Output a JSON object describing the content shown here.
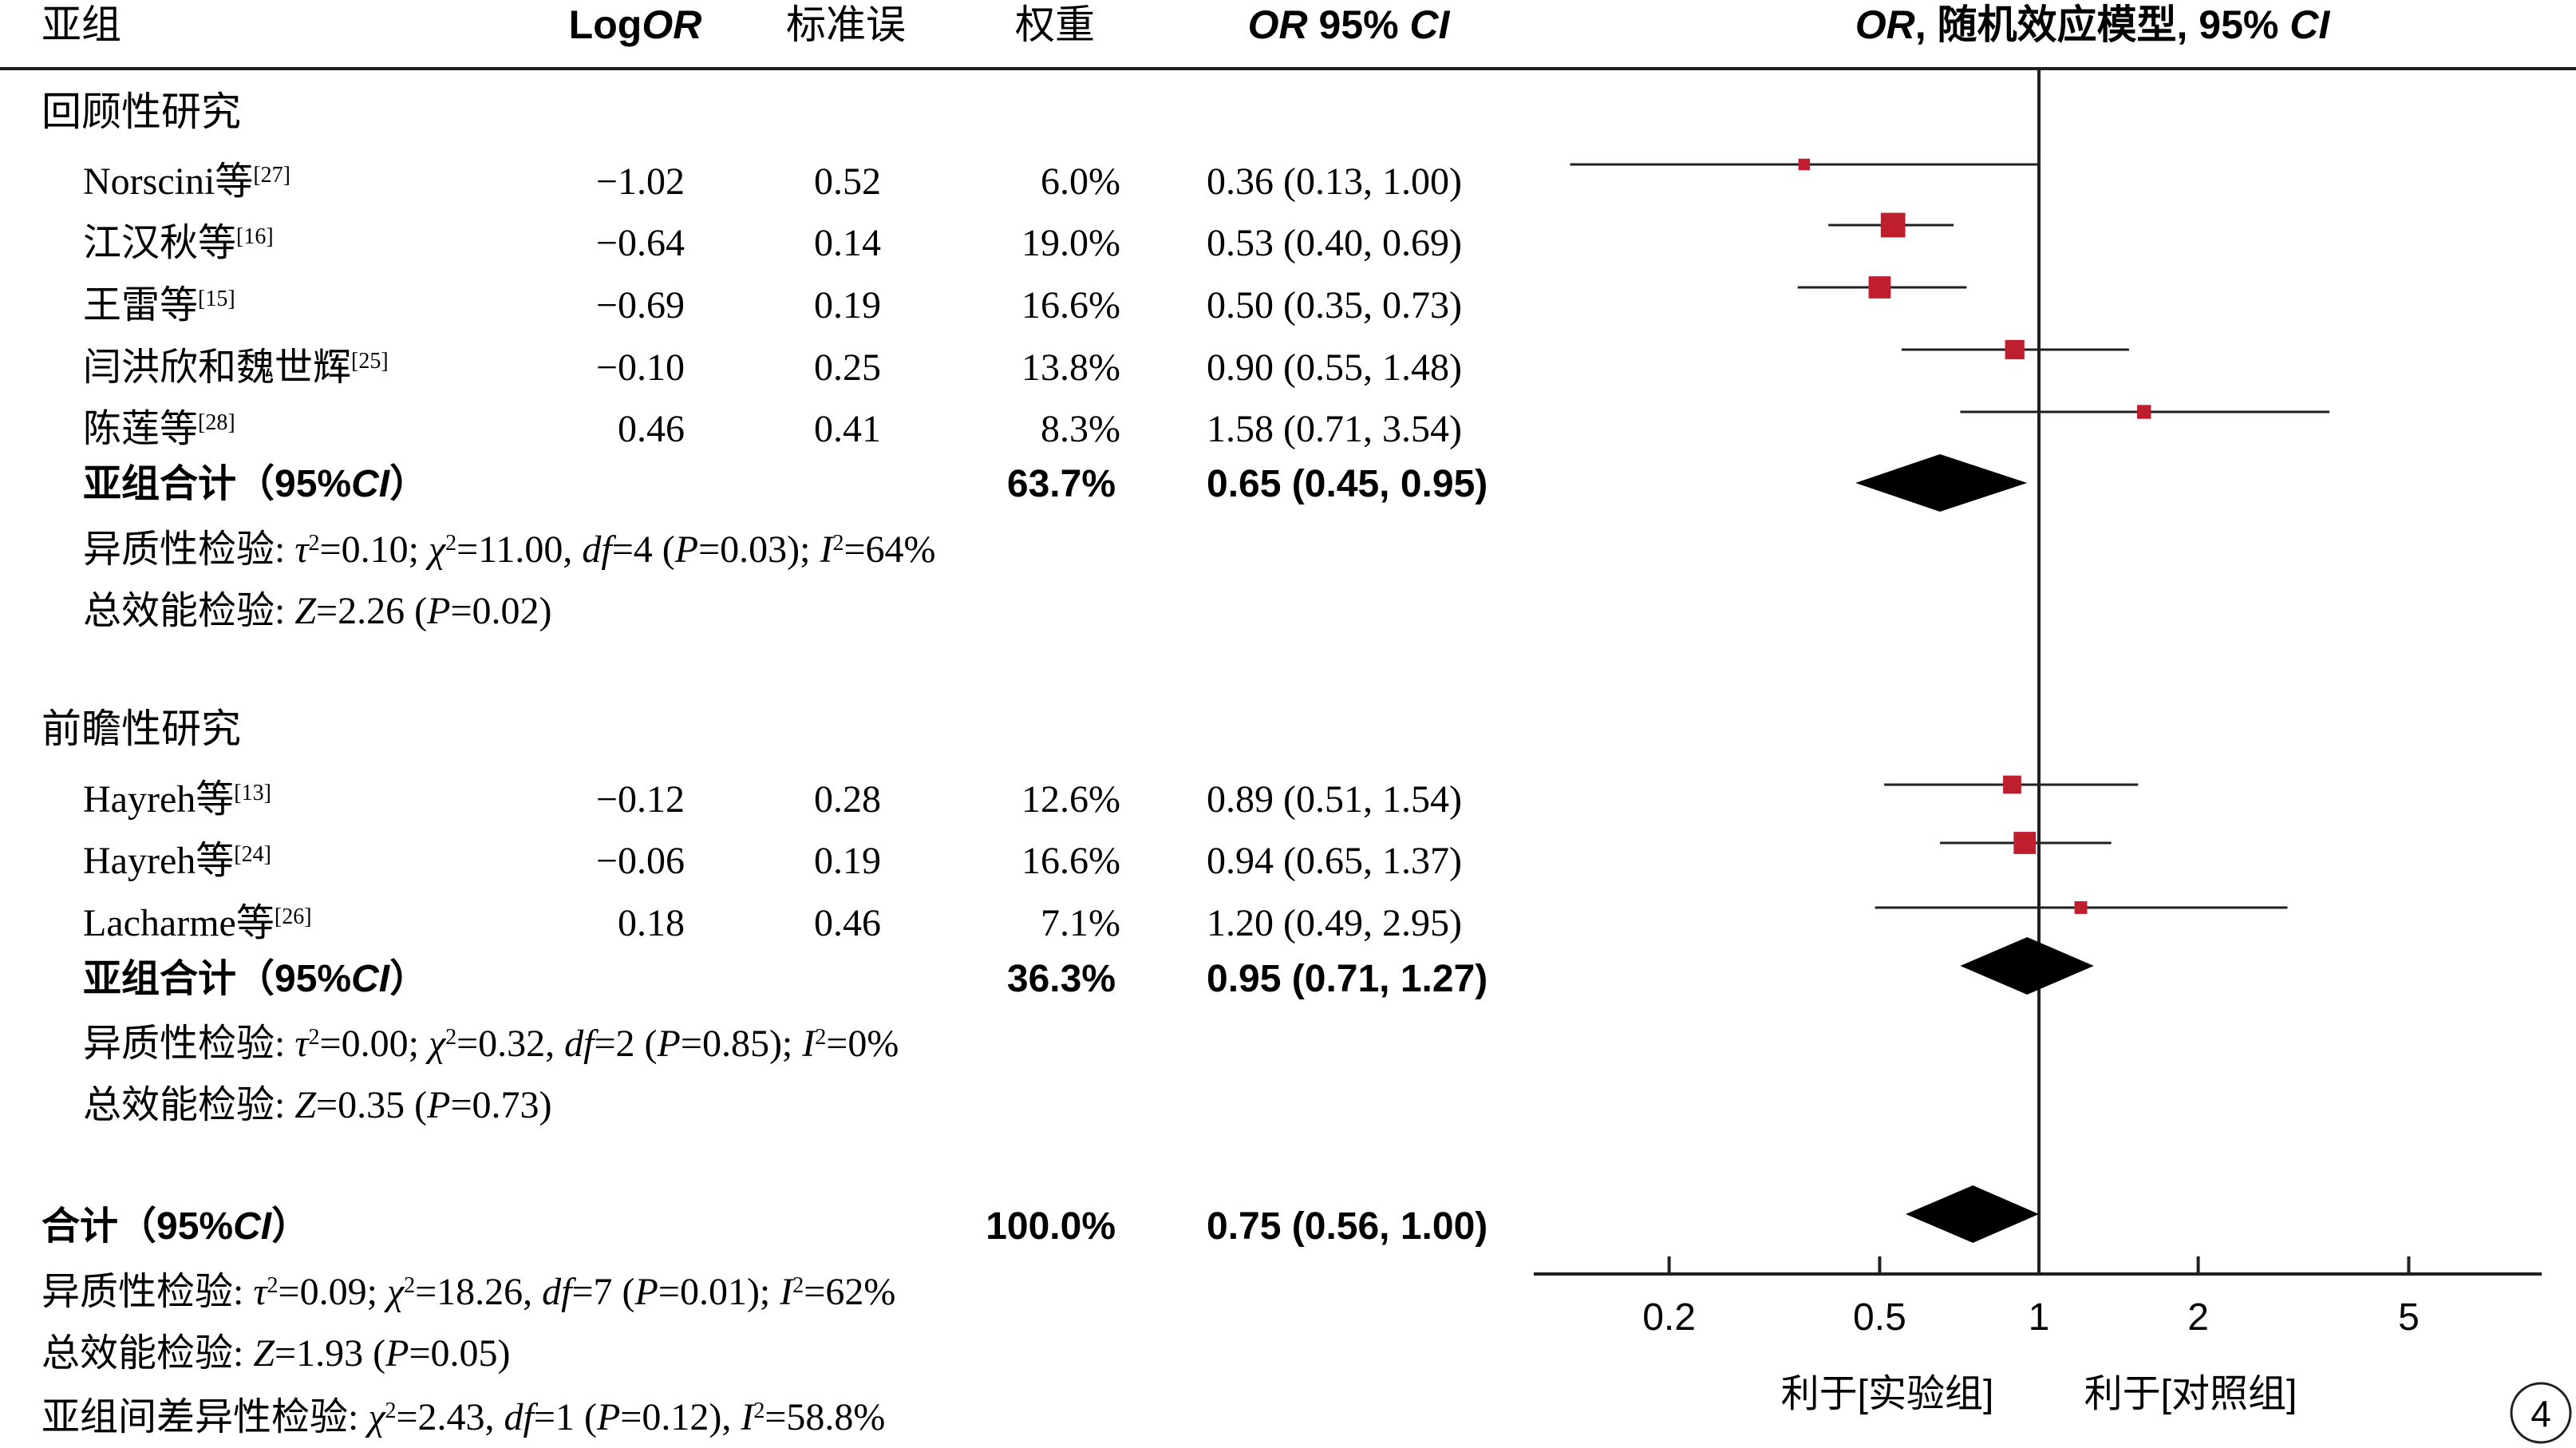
{
  "columns": {
    "subgroup": "亚组",
    "logor_prefix": "Log",
    "logor_italic": "OR",
    "se": "标准误",
    "weight": "权重",
    "ci_italic_or": "OR",
    "ci_mid": " 95% ",
    "ci_italic_ci": "CI",
    "plot_or": "OR",
    "plot_rest": ", 随机效应模型, 95% ",
    "plot_ci": "CI"
  },
  "groups": [
    {
      "title": "回顾性研究",
      "studies": [
        {
          "name": "Norscini等",
          "ref": "[27]",
          "logor": "−1.02",
          "se": "0.52",
          "weight": "6.0%",
          "ci": "0.36 (0.13, 1.00)",
          "or": 0.36,
          "lo": 0.13,
          "hi": 1.0,
          "w": 6.0
        },
        {
          "name": "江汉秋等",
          "ref": "[16]",
          "logor": "−0.64",
          "se": "0.14",
          "weight": "19.0%",
          "ci": "0.53 (0.40, 0.69)",
          "or": 0.53,
          "lo": 0.4,
          "hi": 0.69,
          "w": 19.0
        },
        {
          "name": "王雷等",
          "ref": "[15]",
          "logor": "−0.69",
          "se": "0.19",
          "weight": "16.6%",
          "ci": "0.50 (0.35, 0.73)",
          "or": 0.5,
          "lo": 0.35,
          "hi": 0.73,
          "w": 16.6
        },
        {
          "name": "闫洪欣和魏世辉",
          "ref": "[25]",
          "logor": "−0.10",
          "se": "0.25",
          "weight": "13.8%",
          "ci": "0.90 (0.55, 1.48)",
          "or": 0.9,
          "lo": 0.55,
          "hi": 1.48,
          "w": 13.8
        },
        {
          "name": "陈莲等",
          "ref": "[28]",
          "logor": "0.46",
          "se": "0.41",
          "weight": "8.3%",
          "ci": "1.58 (0.71, 3.54)",
          "or": 1.58,
          "lo": 0.71,
          "hi": 3.54,
          "w": 8.3
        }
      ],
      "subtotal": {
        "label_a": "亚组合计（95%",
        "label_ci": "CI",
        "label_b": "）",
        "weight": "63.7%",
        "ci": "0.65 (0.45, 0.95)",
        "or": 0.65,
        "lo": 0.45,
        "hi": 0.95
      },
      "het": {
        "prefix": "异质性检验: ",
        "tau": "τ",
        "tau_val": "=0.10; ",
        "chi": "χ",
        "chi_val": "=11.00, ",
        "df": "df",
        "df_val": "=4 (",
        "p": "P",
        "p_val": "=0.03); ",
        "i": "I",
        "i_val": "=64%"
      },
      "overall": {
        "prefix": "总效能检验: ",
        "z": "Z",
        "z_val": "=2.26 (",
        "p": "P",
        "p_val": "=0.02)"
      }
    },
    {
      "title": "前瞻性研究",
      "studies": [
        {
          "name": "Hayreh等",
          "ref": "[13]",
          "logor": "−0.12",
          "se": "0.28",
          "weight": "12.6%",
          "ci": "0.89 (0.51, 1.54)",
          "or": 0.89,
          "lo": 0.51,
          "hi": 1.54,
          "w": 12.6
        },
        {
          "name": "Hayreh等",
          "ref": "[24]",
          "logor": "−0.06",
          "se": "0.19",
          "weight": "16.6%",
          "ci": "0.94 (0.65, 1.37)",
          "or": 0.94,
          "lo": 0.65,
          "hi": 1.37,
          "w": 16.6
        },
        {
          "name": "Lacharme等",
          "ref": "[26]",
          "logor": "0.18",
          "se": "0.46",
          "weight": "7.1%",
          "ci": "1.20 (0.49, 2.95)",
          "or": 1.2,
          "lo": 0.49,
          "hi": 2.95,
          "w": 7.1
        }
      ],
      "subtotal": {
        "label_a": "亚组合计（95%",
        "label_ci": "CI",
        "label_b": "）",
        "weight": "36.3%",
        "ci": "0.95 (0.71, 1.27)",
        "or": 0.95,
        "lo": 0.71,
        "hi": 1.27
      },
      "het": {
        "prefix": "异质性检验: ",
        "tau": "τ",
        "tau_val": "=0.00; ",
        "chi": "χ",
        "chi_val": "=0.32, ",
        "df": "df",
        "df_val": "=2 (",
        "p": "P",
        "p_val": "=0.85); ",
        "i": "I",
        "i_val": "=0%"
      },
      "overall": {
        "prefix": "总效能检验: ",
        "z": "Z",
        "z_val": "=0.35 (",
        "p": "P",
        "p_val": "=0.73)"
      }
    }
  ],
  "total": {
    "label_a": "合计（95%",
    "label_ci": "CI",
    "label_b": "）",
    "weight": "100.0%",
    "ci": "0.75 (0.56, 1.00)",
    "or": 0.75,
    "lo": 0.56,
    "hi": 1.0,
    "het": {
      "prefix": "异质性检验: ",
      "tau": "τ",
      "tau_val": "=0.09; ",
      "chi": "χ",
      "chi_val": "=18.26, ",
      "df": "df",
      "df_val": "=7 (",
      "p": "P",
      "p_val": "=0.01); ",
      "i": "I",
      "i_val": "=62%"
    },
    "overall": {
      "prefix": "总效能检验: ",
      "z": "Z",
      "z_val": "=1.93 (",
      "p": "P",
      "p_val": "=0.05)"
    },
    "subgroup_diff": {
      "prefix": "亚组间差异性检验: ",
      "chi": "χ",
      "chi_val": "=2.43, ",
      "df": "df",
      "df_val": "=1 (",
      "p": "P",
      "p_val": "=0.12), ",
      "i": "I",
      "i_val": "=58.8%"
    }
  },
  "chart_data": {
    "type": "forest",
    "scale": "log",
    "x_ticks": [
      0.2,
      0.5,
      1,
      2,
      5
    ],
    "x_tick_labels": [
      "0.2",
      "0.5",
      "1",
      "2",
      "5"
    ],
    "reference_line": 1,
    "favours_left": "利于[实验组]",
    "favours_right": "利于[对照组]",
    "panel_label": "4",
    "marker_color": "#be1e2d",
    "diamond_color": "#000000"
  }
}
